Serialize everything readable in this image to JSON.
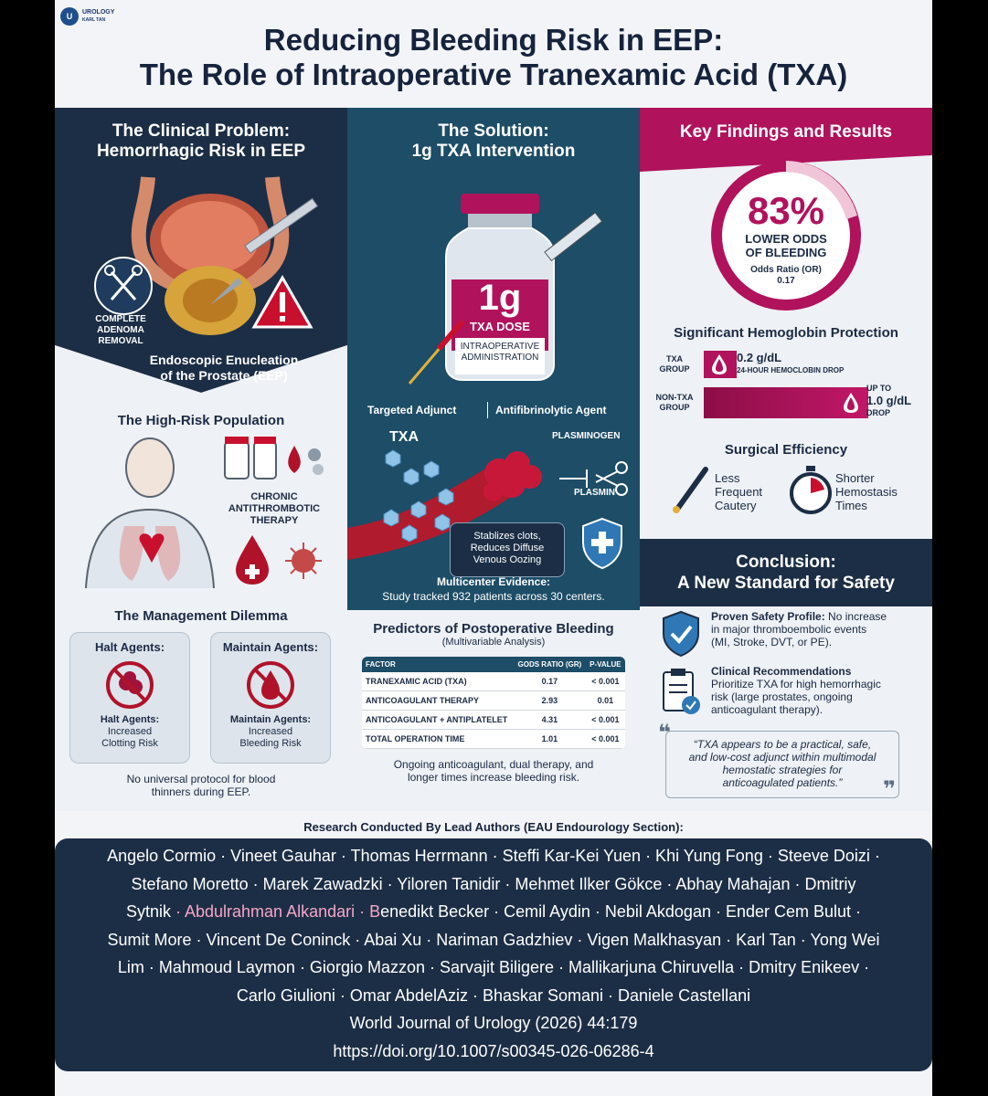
{
  "logo": {
    "mark": "U",
    "line1": "UROLOGY",
    "line2": "KARL TAN"
  },
  "title": {
    "line1": "Reducing Bleeding Risk in EEP:",
    "line2": "The Role of Intraoperative Tranexamic Acid (TXA)"
  },
  "colors": {
    "navy": "#1c2e45",
    "teal": "#1d4d67",
    "magenta": "#b0125c",
    "light": "#eef1f5"
  },
  "problem": {
    "header1": "The Clinical Problem:",
    "header2": "Hemorrhagic Risk in EEP",
    "adenoma_label": [
      "COMPLETE",
      "ADENOMA",
      "REMOVAL"
    ],
    "eep_line1": "Endoscopic Enucleation",
    "eep_line2": "of the Prostate (EEP)",
    "population_title": "The High-Risk Population",
    "therapy_label": [
      "CHRONIC",
      "ANTITHROMBOTIC",
      "THERAPY"
    ],
    "dilemma_title": "The Management Dilemma",
    "halt_title": "Halt Agents:",
    "halt_text": [
      "Halt Agents:",
      "Increased",
      "Clotting Risk"
    ],
    "maintain_title": "Maintain Agents:",
    "maintain_text": [
      "Maintain Agents:",
      "Increased",
      "Bleeding Risk"
    ],
    "dilemma_note1": "No universal protocol for blood",
    "dilemma_note2": "thinners during EEP."
  },
  "solution": {
    "header1": "The Solution:",
    "header2": "1g TXA Intervention",
    "vial_dose": "1g",
    "vial_label": "TXA DOSE",
    "vial_admin1": "INTRAOPERATIVE",
    "vial_admin2": "ADMINISTRATION",
    "tag_left": "Targeted Adjunct",
    "tag_right": "Antifibrinolytic Agent",
    "txa_label": "TXA",
    "plasminogen": "PLASMINOGEN",
    "plasmin": "PLASMIN",
    "clot_text": [
      "Stablizes clots,",
      "Reduces Diffuse",
      "Venous Oozing"
    ],
    "evidence_title": "Multicenter Evidence:",
    "evidence_text": "Study tracked 932 patients across 30 centers.",
    "predictors_title": "Predictors of Postoperative Bleeding",
    "predictors_sub": "(Multivariable Analysis)",
    "table_headers": [
      "FACTOR",
      "GODS RATIO (GR)",
      "P-VALUE"
    ],
    "table_rows": [
      [
        "TRANEXAMIC ACID (TXA)",
        "0.17",
        "< 0.001"
      ],
      [
        "ANTICOAGULANT THERAPY",
        "2.93",
        "0.01"
      ],
      [
        "ANTICOAGULANT + ANTIPLATELET",
        "4.31",
        "< 0.001"
      ],
      [
        "TOTAL OPERATION TIME",
        "1.01",
        "< 0.001"
      ]
    ],
    "table_note1": "Ongoing anticoagulant, dual therapy, and",
    "table_note2": "longer times increase bleeding risk."
  },
  "findings": {
    "header": "Key Findings and Results",
    "big_pct": "83%",
    "odds_line1": "LOWER ODDS",
    "odds_line2": "OF BLEEDING",
    "or_label": "Odds Ratio (OR)",
    "or_value": "0.17",
    "hb_title": "Significant Hemoglobin Protection",
    "txa_group": [
      "TXA",
      "GROUP"
    ],
    "txa_value": "0.2 g/dL",
    "txa_sub": "24-HOUR HEMOCLOBIN DROP",
    "non_txa_group": [
      "NON-TXA",
      "GROUP"
    ],
    "non_txa_upto": "UP TO",
    "non_txa_value": "1.0 g/dL",
    "non_txa_sub": "DROP",
    "txa_bar_fraction": 0.2,
    "non_txa_bar_fraction": 1.0,
    "efficiency_title": "Surgical Efficiency",
    "eff_left": [
      "Less",
      "Frequent",
      "Cautery"
    ],
    "eff_right": [
      "Shorter",
      "Hemostasis",
      "Times"
    ],
    "conclusion1": "Conclusion:",
    "conclusion2": "A New Standard for Safety",
    "safety_bold": "Proven Safety Profile:",
    "safety_text1": " No increase",
    "safety_text2": "in major thromboembolic events",
    "safety_text3": "(MI, Stroke, DVT, or PE).",
    "rec_title": "Clinical Recommendations",
    "rec_text1": "Prioritize TXA for high hemorrhagic",
    "rec_text2": "risk (large prostates, ongoing",
    "rec_text3": "anticoagulant therapy).",
    "quote1": "“TXA appears to be a practical, safe,",
    "quote2": "and low-cost adjunct within multimodal",
    "quote3": "hemostatic strategies for",
    "quote4": "anticoagulated patients.”"
  },
  "authors_heading": "Research Conducted By Lead Authors (EAU Endourology Section):",
  "authors": {
    "l1": "Angelo Cormio · Vineet Gauhar · Thomas Herrmann · Steffi Kar-Kei Yuen · Khi Yung Fong · Steeve Doizi ·",
    "l2": "Stefano Moretto · Marek Zawadzki · Yiloren Tanidir · Mehmet Ilker Gökce · Abhay Mahajan · Dmitriy",
    "l3a": "Sytnik",
    "l3b": " · Abdulrahman Alkandari · B",
    "l3c": "enedikt Becker · Cemil Aydin · Nebil Akdogan · Ender Cem Bulut ·",
    "l4": "Sumit More · Vincent De Coninck · Abai Xu · Nariman Gadzhiev · Vigen Malkhasyan · Karl Tan · Yong Wei",
    "l5": "Lim · Mahmoud Laymon · Giorgio Mazzon · Sarvajit Biligere · Mallikarjuna Chiruvella · Dmitry Enikeev ·",
    "l6": "Carlo Giulioni · Omar AbdelAziz · Bhaskar Somani · Daniele Castellani",
    "journal": "World Journal of Urology (2026) 44:179",
    "doi": "https://doi.org/10.1007/s00345-026-06286-4"
  }
}
